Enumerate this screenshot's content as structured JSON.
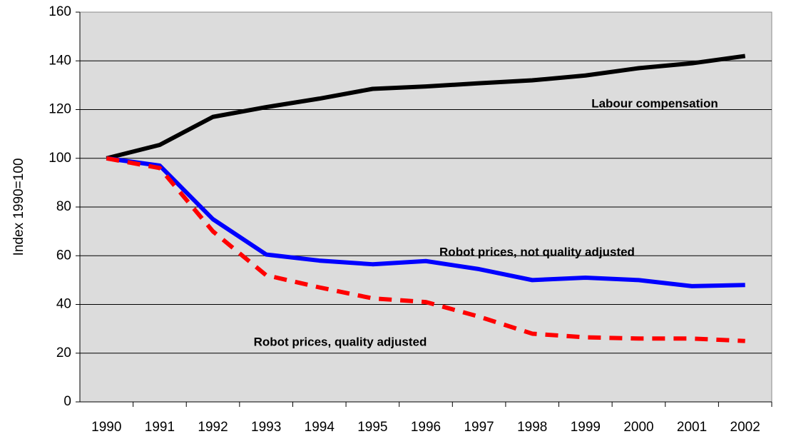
{
  "chart_data": {
    "type": "line",
    "y_label": "Index 1990=100",
    "categories": [
      "1990",
      "1991",
      "1992",
      "1993",
      "1994",
      "1995",
      "1996",
      "1997",
      "1998",
      "1999",
      "2000",
      "2001",
      "2002"
    ],
    "series": [
      {
        "name": "Labour compensation",
        "color": "#000000",
        "style": "solid",
        "values": [
          100,
          105.5,
          117,
          121,
          124.5,
          128.5,
          129.5,
          130.8,
          132,
          134,
          137,
          139,
          142
        ]
      },
      {
        "name": "Robot prices, not quality adjusted",
        "color": "#0000ff",
        "style": "solid",
        "values": [
          100,
          97,
          75,
          60.5,
          58,
          56.5,
          57.8,
          54.5,
          50,
          51,
          50,
          47.5,
          48
        ]
      },
      {
        "name": "Robot prices, quality adjusted",
        "color": "#ff0000",
        "style": "dashed",
        "values": [
          100,
          96,
          70,
          52,
          47,
          42.5,
          41,
          35,
          28,
          26.5,
          26,
          26,
          25
        ]
      }
    ],
    "ylim": [
      0,
      160
    ],
    "yticks": [
      0,
      20,
      40,
      60,
      80,
      100,
      120,
      140,
      160
    ],
    "grid": true
  }
}
